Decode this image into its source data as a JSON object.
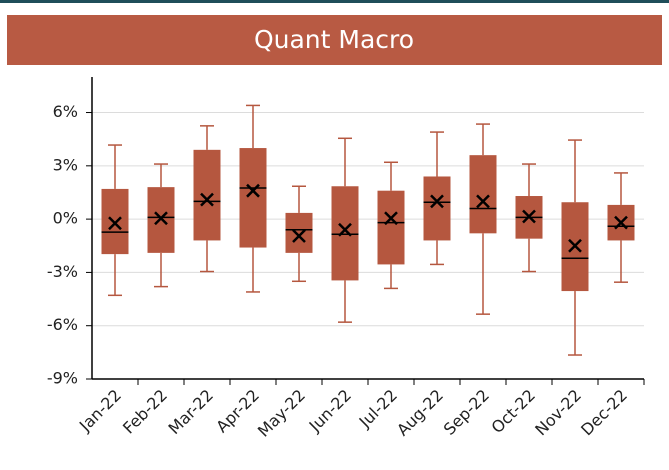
{
  "chart_data": {
    "type": "box",
    "title": "Quant Macro",
    "categories": [
      "Jan-22",
      "Feb-22",
      "Mar-22",
      "Apr-22",
      "May-22",
      "Jun-22",
      "Jul-22",
      "Aug-22",
      "Sep-22",
      "Oct-22",
      "Nov-22",
      "Dec-22"
    ],
    "min": [
      -4.29,
      -3.8,
      -2.95,
      -4.1,
      -3.5,
      -5.8,
      -3.9,
      -2.55,
      -5.35,
      -2.95,
      -7.65,
      -3.55
    ],
    "q1": [
      -1.97,
      -1.9,
      -1.2,
      -1.6,
      -1.9,
      -3.45,
      -2.55,
      -1.2,
      -0.8,
      -1.1,
      -4.05,
      -1.2
    ],
    "median": [
      -0.73,
      0.1,
      1.0,
      1.75,
      -0.6,
      -0.85,
      -0.2,
      0.95,
      0.6,
      0.1,
      -2.2,
      -0.4
    ],
    "q3": [
      1.7,
      1.8,
      3.9,
      4.0,
      0.35,
      1.85,
      1.6,
      2.4,
      3.6,
      1.3,
      0.95,
      0.8
    ],
    "max": [
      4.17,
      3.1,
      5.25,
      6.4,
      1.85,
      4.55,
      3.2,
      4.9,
      5.35,
      3.1,
      4.45,
      2.6
    ],
    "mean": [
      -0.23,
      0.05,
      1.1,
      1.6,
      -0.95,
      -0.6,
      0.05,
      1.0,
      1.0,
      0.15,
      -1.5,
      -0.2
    ],
    "color": "#b5573f",
    "ylim": [
      -9,
      8
    ],
    "yticks": [
      {
        "value": -9,
        "label": "-9%"
      },
      {
        "value": -6,
        "label": "-6%"
      },
      {
        "value": -3,
        "label": "-3%"
      },
      {
        "value": 0,
        "label": "0%"
      },
      {
        "value": 3,
        "label": "3%"
      },
      {
        "value": 6,
        "label": "6%"
      }
    ],
    "grid": true
  }
}
